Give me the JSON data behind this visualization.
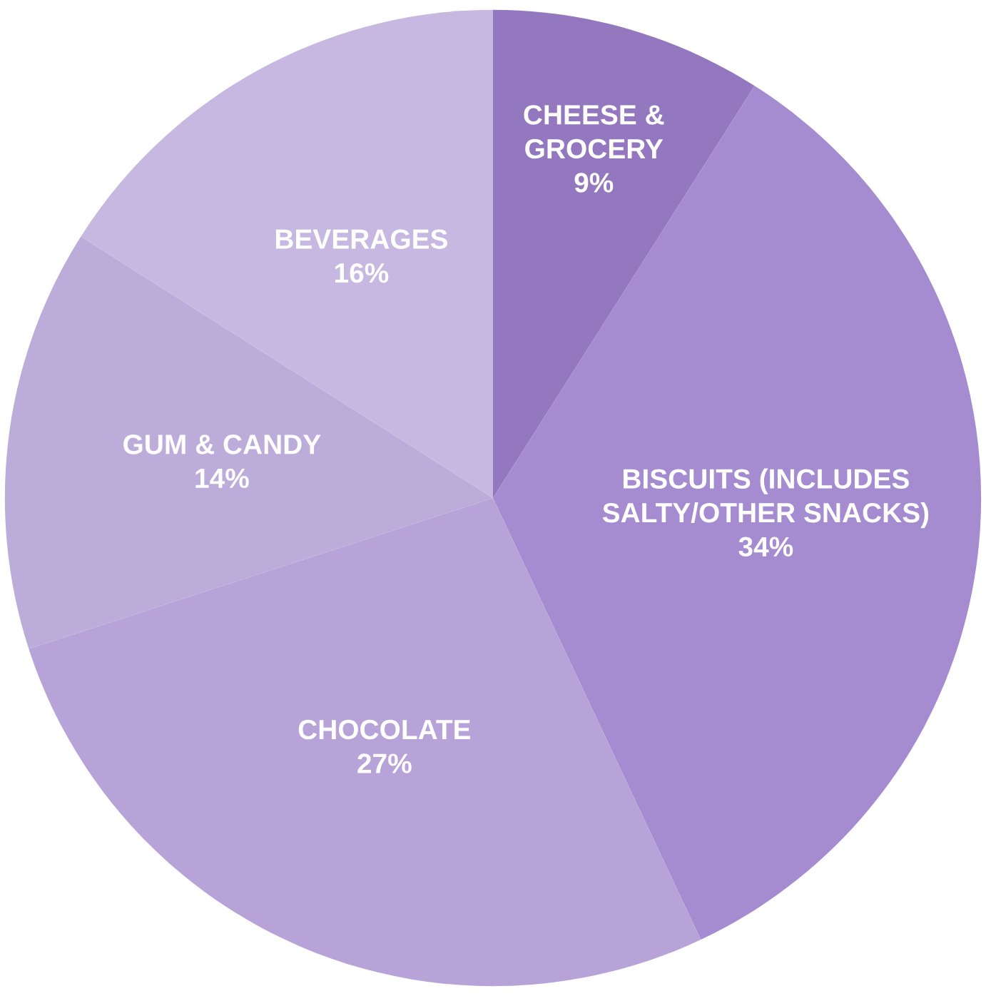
{
  "chart_data": {
    "type": "pie",
    "categories": [
      "CHEESE &\nGROCERY",
      "BISCUITS (INCLUDES\nSALTY/OTHER SNACKS)",
      "CHOCOLATE",
      "GUM & CANDY",
      "BEVERAGES"
    ],
    "values": [
      9,
      34,
      27,
      14,
      16
    ],
    "value_labels": [
      "9%",
      "34%",
      "27%",
      "14%",
      "16%"
    ],
    "colors": [
      "#9378bf",
      "#a58bcf",
      "#b7a3d8",
      "#bcacda",
      "#c6b8e0"
    ],
    "legend": false
  }
}
